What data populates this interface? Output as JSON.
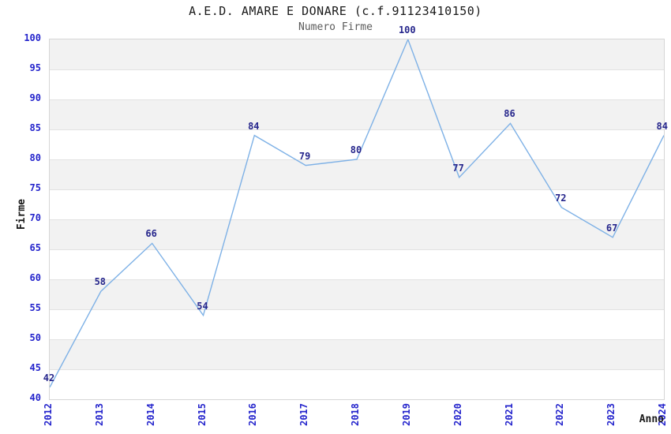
{
  "title": "A.E.D. AMARE E DONARE (c.f.91123410150)",
  "subtitle": "Numero Firme",
  "y_axis_title": "Firme",
  "x_axis_title": "Anno",
  "colors": {
    "line": "#7eb1e6",
    "data_label": "#26268c",
    "tick_label": "#2424cc",
    "band_gray": "#f2f2f2",
    "gridline": "#e2e2e2",
    "plot_border": "#d6d6d6",
    "title": "#1a1a1a",
    "subtitle": "#5a5a5a"
  },
  "chart_data": {
    "type": "line",
    "title": "A.E.D. AMARE E DONARE (c.f.91123410150)",
    "subtitle": "Numero Firme",
    "xlabel": "Anno",
    "ylabel": "Firme",
    "categories": [
      "2012",
      "2013",
      "2014",
      "2015",
      "2016",
      "2017",
      "2018",
      "2019",
      "2020",
      "2021",
      "2022",
      "2023",
      "2024"
    ],
    "series": [
      {
        "name": "Numero Firme",
        "values": [
          42,
          58,
          66,
          54,
          84,
          79,
          80,
          100,
          77,
          86,
          72,
          67,
          84
        ]
      }
    ],
    "ylim": [
      40,
      100
    ],
    "ytick_step": 5,
    "grid": "horizontal-bands-alternating",
    "legend": "none",
    "data_labels": "shown-above-points",
    "x_tick_rotation": 90
  }
}
